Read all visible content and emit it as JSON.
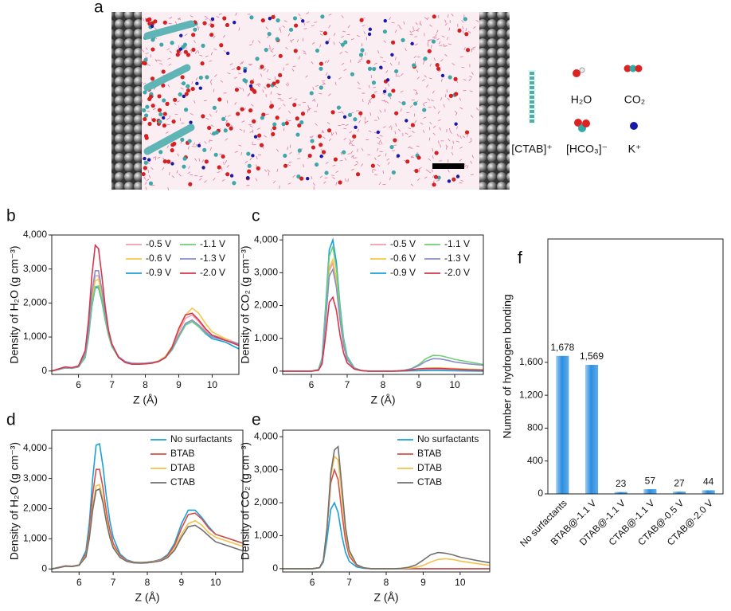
{
  "panel_a": {
    "label": "a",
    "legend": [
      "[CTAB]⁺",
      "H₂O",
      "CO₂",
      "[HCO₃]⁻",
      "K⁺"
    ]
  },
  "chart_data": [
    {
      "type": "line",
      "panel": "b",
      "xlabel": "Z (Å)",
      "ylabel": "Density of H₂O (g cm⁻³)",
      "x": [
        5.2,
        5.4,
        5.6,
        5.8,
        6.0,
        6.2,
        6.3,
        6.4,
        6.5,
        6.6,
        6.7,
        6.8,
        6.9,
        7.0,
        7.2,
        7.4,
        7.6,
        7.8,
        8.0,
        8.2,
        8.4,
        8.6,
        8.8,
        9.0,
        9.2,
        9.4,
        9.6,
        9.8,
        10.0,
        10.4,
        10.8
      ],
      "xlim": [
        5.2,
        10.8
      ],
      "xticks": [
        6,
        7,
        8,
        9,
        10
      ],
      "ylim": [
        -100,
        4000
      ],
      "yticks": [
        0,
        {
          "value": 1000,
          "label": "1,000"
        },
        {
          "value": 2000,
          "label": "2,000"
        },
        {
          "value": 3000,
          "label": "3,000"
        },
        {
          "value": 4000,
          "label": "4,000"
        }
      ],
      "legend": "upper right",
      "series": [
        {
          "name": "-0.5 V",
          "color": "#f29bb0",
          "values": [
            0,
            50,
            100,
            90,
            130,
            480,
            1150,
            2200,
            2800,
            2800,
            2300,
            1650,
            1100,
            760,
            410,
            270,
            220,
            215,
            225,
            245,
            290,
            420,
            700,
            1150,
            1550,
            1650,
            1450,
            1200,
            1050,
            950,
            800
          ]
        },
        {
          "name": "-0.6 V",
          "color": "#f5c74a",
          "values": [
            0,
            50,
            100,
            90,
            130,
            450,
            1100,
            2100,
            2650,
            2700,
            2250,
            1600,
            1100,
            760,
            420,
            280,
            230,
            225,
            230,
            250,
            300,
            430,
            720,
            1200,
            1650,
            1850,
            1700,
            1400,
            1150,
            950,
            750
          ]
        },
        {
          "name": "-0.9 V",
          "color": "#1aa0d8",
          "values": [
            0,
            40,
            90,
            80,
            120,
            400,
            1000,
            1900,
            2450,
            2450,
            2050,
            1500,
            1050,
            720,
            400,
            270,
            220,
            210,
            220,
            240,
            280,
            390,
            620,
            1000,
            1350,
            1450,
            1300,
            1100,
            950,
            850,
            650
          ]
        },
        {
          "name": "-1.1 V",
          "color": "#6fcf72",
          "values": [
            0,
            40,
            90,
            80,
            120,
            420,
            1050,
            1950,
            2480,
            2500,
            2100,
            1520,
            1060,
            730,
            400,
            270,
            220,
            210,
            220,
            240,
            280,
            390,
            620,
            1000,
            1350,
            1450,
            1300,
            1120,
            1000,
            900,
            800
          ]
        },
        {
          "name": "-1.3 V",
          "color": "#8a90c8",
          "values": [
            0,
            50,
            100,
            90,
            130,
            500,
            1200,
            2300,
            2950,
            2950,
            2400,
            1700,
            1150,
            780,
            420,
            280,
            230,
            220,
            230,
            250,
            290,
            400,
            650,
            1050,
            1400,
            1500,
            1350,
            1150,
            1000,
            900,
            800
          ]
        },
        {
          "name": "-2.0 V",
          "color": "#d6364a",
          "values": [
            0,
            60,
            120,
            100,
            150,
            600,
            1500,
            2800,
            3700,
            3600,
            2800,
            1900,
            1200,
            800,
            400,
            250,
            200,
            200,
            210,
            230,
            280,
            400,
            700,
            1250,
            1650,
            1700,
            1500,
            1250,
            1050,
            900,
            750
          ]
        }
      ]
    },
    {
      "type": "line",
      "panel": "c",
      "xlabel": "Z (Å)",
      "ylabel": "Density of CO₂ (g cm⁻³)",
      "x": [
        5.2,
        5.4,
        5.6,
        5.8,
        6.0,
        6.2,
        6.3,
        6.4,
        6.5,
        6.6,
        6.7,
        6.8,
        6.9,
        7.0,
        7.2,
        7.4,
        7.6,
        7.8,
        8.0,
        8.2,
        8.4,
        8.6,
        8.8,
        9.0,
        9.2,
        9.4,
        9.6,
        9.8,
        10.0,
        10.4,
        10.8
      ],
      "xlim": [
        5.2,
        10.8
      ],
      "xticks": [
        6,
        7,
        8,
        9,
        10
      ],
      "ylim": [
        -100,
        4150
      ],
      "yticks": [
        0,
        {
          "value": 1000,
          "label": "1,000"
        },
        {
          "value": 2000,
          "label": "2,000"
        },
        {
          "value": 3000,
          "label": "3,000"
        },
        {
          "value": 4000,
          "label": "4,000"
        }
      ],
      "legend": "upper right",
      "series": [
        {
          "name": "-0.5 V",
          "color": "#f29bb0",
          "values": [
            0,
            0,
            0,
            0,
            0,
            40,
            320,
            1650,
            3050,
            3300,
            2700,
            1650,
            830,
            370,
            90,
            20,
            0,
            0,
            0,
            0,
            5,
            10,
            20,
            40,
            50,
            60,
            60,
            55,
            50,
            40,
            30
          ]
        },
        {
          "name": "-0.6 V",
          "color": "#f5c74a",
          "values": [
            0,
            0,
            0,
            0,
            0,
            40,
            330,
            1700,
            3150,
            3400,
            2800,
            1700,
            850,
            380,
            90,
            20,
            0,
            0,
            0,
            0,
            5,
            10,
            30,
            60,
            90,
            100,
            100,
            90,
            80,
            60,
            40
          ]
        },
        {
          "name": "-0.9 V",
          "color": "#1aa0d8",
          "values": [
            0,
            0,
            0,
            0,
            0,
            50,
            400,
            2000,
            3700,
            4000,
            3300,
            2000,
            1000,
            450,
            100,
            20,
            0,
            0,
            0,
            0,
            0,
            5,
            10,
            15,
            20,
            20,
            20,
            15,
            10,
            5,
            0
          ]
        },
        {
          "name": "-1.1 V",
          "color": "#6fcf72",
          "values": [
            0,
            0,
            0,
            0,
            0,
            50,
            380,
            1900,
            3500,
            3800,
            3100,
            1900,
            950,
            420,
            100,
            20,
            0,
            0,
            0,
            0,
            10,
            30,
            80,
            200,
            380,
            480,
            470,
            420,
            360,
            280,
            200
          ]
        },
        {
          "name": "-1.3 V",
          "color": "#8a90c8",
          "values": [
            0,
            0,
            0,
            0,
            0,
            35,
            300,
            1550,
            2900,
            3100,
            2550,
            1550,
            780,
            350,
            85,
            20,
            0,
            0,
            0,
            0,
            8,
            25,
            70,
            170,
            300,
            380,
            370,
            330,
            280,
            220,
            180
          ]
        },
        {
          "name": "-2.0 V",
          "color": "#d6364a",
          "values": [
            0,
            0,
            0,
            0,
            0,
            25,
            220,
            1100,
            2100,
            2250,
            1850,
            1100,
            550,
            250,
            60,
            15,
            0,
            0,
            0,
            0,
            5,
            15,
            40,
            70,
            80,
            80,
            80,
            70,
            60,
            40,
            30
          ]
        }
      ]
    },
    {
      "type": "line",
      "panel": "d",
      "xlabel": "Z (Å)",
      "ylabel": "Density of H₂O (g cm⁻³)",
      "x": [
        5.2,
        5.4,
        5.6,
        5.8,
        6.0,
        6.2,
        6.3,
        6.4,
        6.5,
        6.6,
        6.7,
        6.8,
        6.9,
        7.0,
        7.2,
        7.4,
        7.6,
        7.8,
        8.0,
        8.2,
        8.4,
        8.6,
        8.8,
        9.0,
        9.2,
        9.4,
        9.6,
        9.8,
        10.0,
        10.4,
        10.8
      ],
      "xlim": [
        5.2,
        10.8
      ],
      "xticks": [
        6,
        7,
        8,
        9,
        10
      ],
      "ylim": [
        -100,
        4600
      ],
      "yticks": [
        0,
        {
          "value": 1000,
          "label": "1,000"
        },
        {
          "value": 2000,
          "label": "2,000"
        },
        {
          "value": 3000,
          "label": "3,000"
        },
        {
          "value": 4000,
          "label": "4,000"
        }
      ],
      "legend": "upper right",
      "series": [
        {
          "name": "No surfactants",
          "color": "#1aa0d8",
          "values": [
            0,
            50,
            100,
            90,
            130,
            600,
            1500,
            3000,
            4100,
            4150,
            3400,
            2400,
            1600,
            1050,
            500,
            300,
            230,
            220,
            230,
            260,
            320,
            480,
            850,
            1500,
            1950,
            1950,
            1700,
            1400,
            1150,
            1000,
            850
          ]
        },
        {
          "name": "BTAB",
          "color": "#d6504a",
          "values": [
            0,
            50,
            100,
            90,
            130,
            500,
            1250,
            2450,
            3300,
            3300,
            2700,
            1900,
            1300,
            850,
            440,
            280,
            220,
            210,
            220,
            250,
            300,
            440,
            780,
            1350,
            1800,
            1850,
            1650,
            1350,
            1150,
            1000,
            850
          ]
        },
        {
          "name": "DTAB",
          "color": "#f5c04a",
          "values": [
            0,
            40,
            90,
            80,
            120,
            430,
            1050,
            2050,
            2750,
            2800,
            2300,
            1650,
            1100,
            750,
            400,
            260,
            210,
            200,
            210,
            240,
            280,
            400,
            680,
            1150,
            1500,
            1600,
            1450,
            1200,
            1050,
            900,
            750
          ]
        },
        {
          "name": "CTAB",
          "color": "#707070",
          "values": [
            0,
            40,
            90,
            80,
            120,
            400,
            1000,
            1950,
            2600,
            2650,
            2200,
            1550,
            1050,
            700,
            380,
            250,
            200,
            190,
            200,
            230,
            270,
            380,
            620,
            1050,
            1400,
            1450,
            1300,
            1100,
            900,
            750,
            600
          ]
        }
      ]
    },
    {
      "type": "line",
      "panel": "e",
      "xlabel": "Z (Å)",
      "ylabel": "Density of CO₂ (g cm⁻³)",
      "x": [
        5.2,
        5.4,
        5.6,
        5.8,
        6.0,
        6.2,
        6.3,
        6.4,
        6.5,
        6.6,
        6.7,
        6.8,
        6.9,
        7.0,
        7.2,
        7.4,
        7.6,
        7.8,
        8.0,
        8.2,
        8.4,
        8.6,
        8.8,
        9.0,
        9.2,
        9.4,
        9.6,
        9.8,
        10.0,
        10.4,
        10.8
      ],
      "xlim": [
        5.2,
        10.8
      ],
      "xticks": [
        6,
        7,
        8,
        9,
        10
      ],
      "ylim": [
        -100,
        4200
      ],
      "yticks": [
        0,
        {
          "value": 1000,
          "label": "1,000"
        },
        {
          "value": 2000,
          "label": "2,000"
        },
        {
          "value": 3000,
          "label": "3,000"
        },
        {
          "value": 4000,
          "label": "4,000"
        }
      ],
      "legend": "upper right",
      "series": [
        {
          "name": "No surfactants",
          "color": "#1aa0d8",
          "values": [
            0,
            0,
            0,
            0,
            0,
            30,
            200,
            900,
            1800,
            2000,
            1700,
            1000,
            500,
            220,
            50,
            10,
            0,
            0,
            0,
            0,
            0,
            0,
            0,
            0,
            0,
            0,
            0,
            0,
            0,
            0,
            0
          ]
        },
        {
          "name": "BTAB",
          "color": "#d6504a",
          "values": [
            0,
            0,
            0,
            0,
            0,
            30,
            250,
            1200,
            2600,
            3000,
            2700,
            1700,
            850,
            380,
            90,
            20,
            0,
            0,
            0,
            0,
            0,
            0,
            0,
            0,
            0,
            0,
            0,
            0,
            0,
            0,
            0
          ]
        },
        {
          "name": "DTAB",
          "color": "#f5c04a",
          "values": [
            0,
            0,
            0,
            0,
            0,
            30,
            250,
            1200,
            2800,
            3400,
            3300,
            2200,
            1100,
            480,
            110,
            25,
            0,
            0,
            0,
            0,
            5,
            15,
            40,
            100,
            200,
            280,
            300,
            280,
            230,
            160,
            100
          ]
        },
        {
          "name": "CTAB",
          "color": "#707070",
          "values": [
            0,
            0,
            0,
            0,
            0,
            30,
            260,
            1250,
            2900,
            3600,
            3700,
            2500,
            1250,
            550,
            120,
            25,
            0,
            0,
            0,
            0,
            10,
            40,
            110,
            260,
            420,
            490,
            470,
            420,
            350,
            260,
            180
          ]
        }
      ]
    },
    {
      "type": "bar",
      "panel": "f",
      "ylabel": "Number of hydrogen bonding",
      "categories": [
        "No surfactants",
        "BTAB@-1.1 V",
        "DTAB@-1.1 V",
        "CTAB@-1.1 V",
        "CTAB@-0.5 V",
        "CTAB@-2.0 V"
      ],
      "values": [
        1678,
        1569,
        23,
        57,
        27,
        44
      ],
      "value_labels": [
        "1,678",
        "1,569",
        "23",
        "57",
        "27",
        "44"
      ],
      "color": "#2a8ee0",
      "ylim": [
        0,
        3100
      ],
      "yticks": [
        0,
        400,
        800,
        {
          "value": 1200,
          "label": "1,200"
        },
        {
          "value": 1600,
          "label": "1,600"
        }
      ]
    }
  ]
}
